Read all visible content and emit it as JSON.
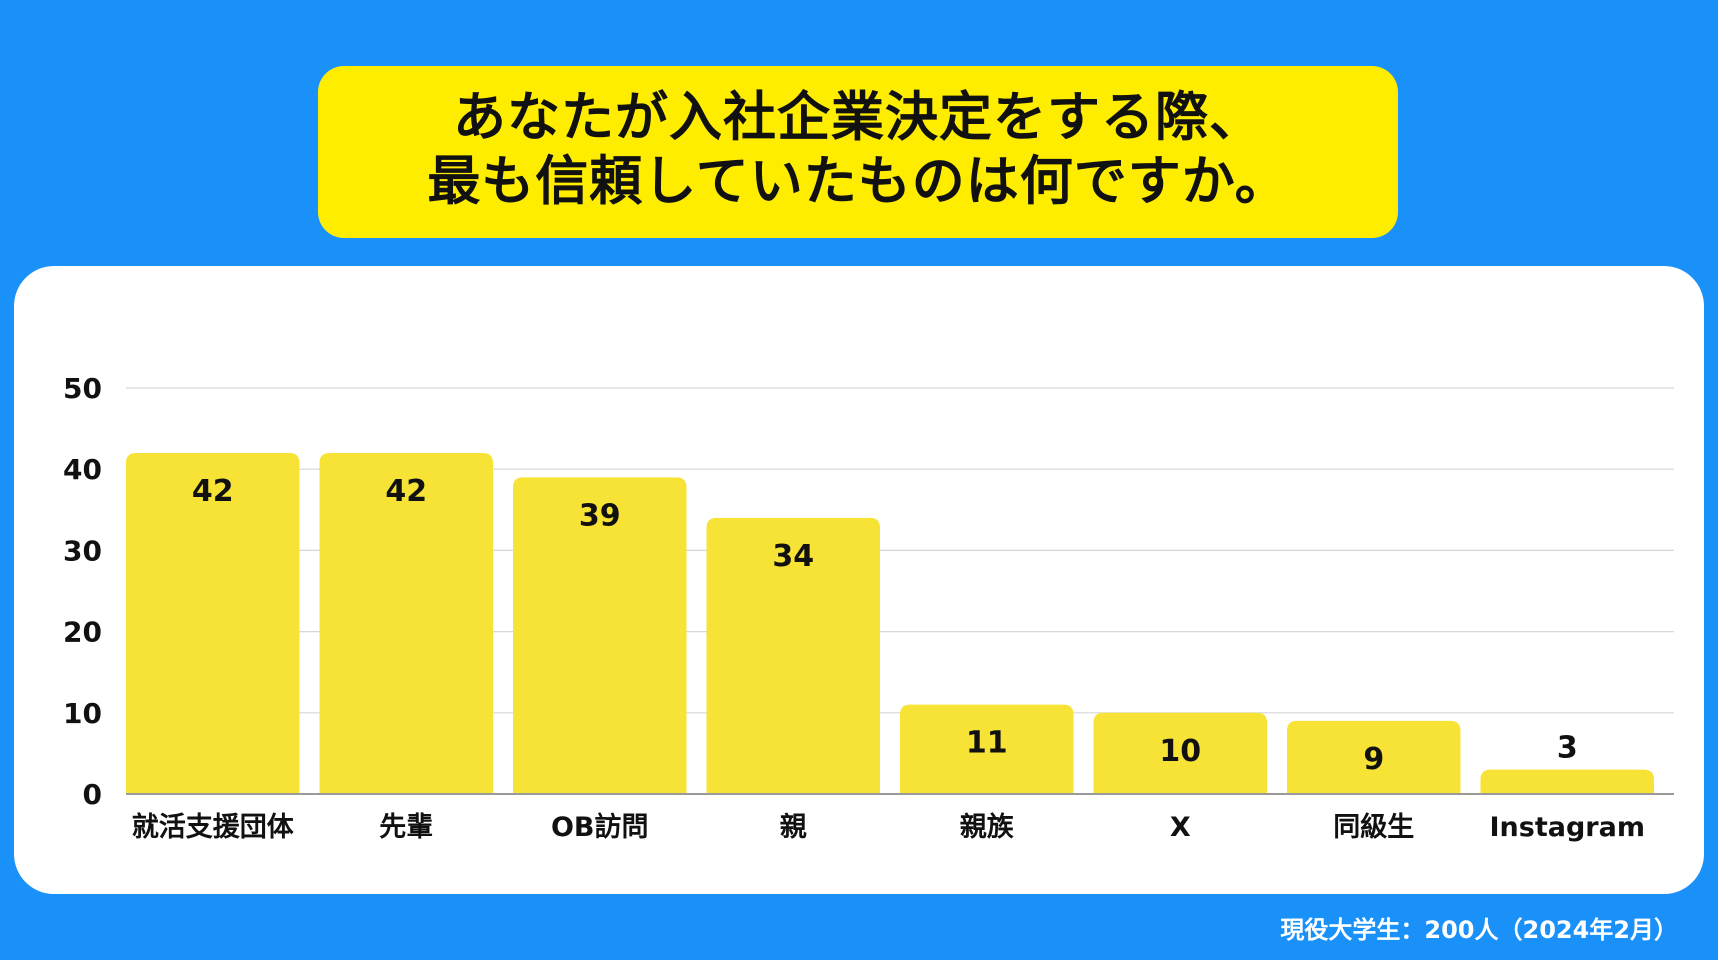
{
  "title": {
    "line1": "あなたが入社企業決定をする際、",
    "line2": "最も信頼していたものは何ですか。"
  },
  "footnote": "現役大学生：200人（2024年2月）",
  "colors": {
    "background": "#1A91F9",
    "title_box": "#FFED00",
    "bar": "#F7E335",
    "card": "#FFFFFF",
    "text": "#111111"
  },
  "chart_data": {
    "type": "bar",
    "categories": [
      "就活支援団体",
      "先輩",
      "OB訪問",
      "親",
      "親族",
      "X",
      "同級生",
      "Instagram"
    ],
    "values": [
      42,
      42,
      39,
      34,
      11,
      10,
      9,
      3
    ],
    "ylim": [
      0,
      50
    ],
    "yticks": [
      "0",
      "10",
      "20",
      "30",
      "40",
      "50"
    ],
    "grid": true,
    "data_labels": true
  }
}
